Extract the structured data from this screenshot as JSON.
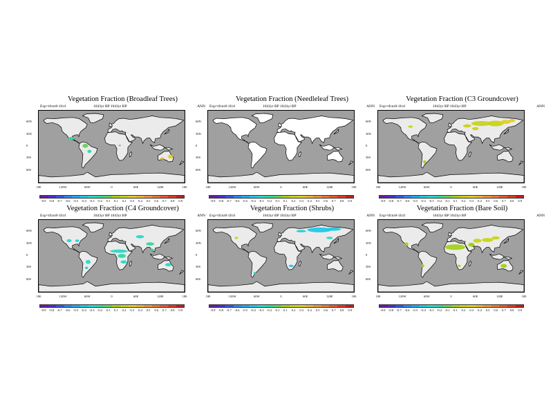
{
  "common": {
    "subtitle_left": "Exp=tfcnr8-1fcrl",
    "subtitle_mid": "1043yr BP   1043yr BP",
    "subtitle_right": "ANN",
    "lat_labels": [
      "60N",
      "30N",
      "0",
      "30S",
      "60S"
    ],
    "lon_labels": [
      "180",
      "120W",
      "60W",
      "0",
      "60E",
      "120E",
      "180"
    ],
    "colorbar_labels": [
      "-0.9",
      "-0.8",
      "-0.7",
      "-0.6",
      "-0.5",
      "-0.4",
      "-0.3",
      "-0.2",
      "-0.1",
      "0.1",
      "0.2",
      "0.3",
      "0.4",
      "0.5",
      "0.6",
      "0.7",
      "0.8",
      "0.9"
    ],
    "colorbar_colors": [
      "#6a1aa8",
      "#4a2fd0",
      "#3158e8",
      "#2f86f0",
      "#22a9f0",
      "#22c8e6",
      "#2bd8c9",
      "#2fd9a0",
      "#66d25a",
      "#a2d21b",
      "#c8d41a",
      "#e0cf2a",
      "#e8b43c",
      "#e9963e",
      "#e77a38",
      "#e45a2e",
      "#dd3b25",
      "#c81d1d"
    ],
    "colors": {
      "ocean": "#a0a0a0",
      "land": "#ebebeb",
      "coast": "#000000"
    }
  },
  "panels": [
    {
      "title": "Vegetation Fraction (Broadleaf Trees)"
    },
    {
      "title": "Vegetation Fraction (Needleleaf Trees)"
    },
    {
      "title": "Vegetation Fraction (C3 Groundcover)"
    },
    {
      "title": "Vegetation Fraction (C4 Groundcover)"
    },
    {
      "title": "Vegetation Fraction (Shrubs)"
    },
    {
      "title": "Vegetation Fraction (Bare Soil)"
    }
  ]
}
